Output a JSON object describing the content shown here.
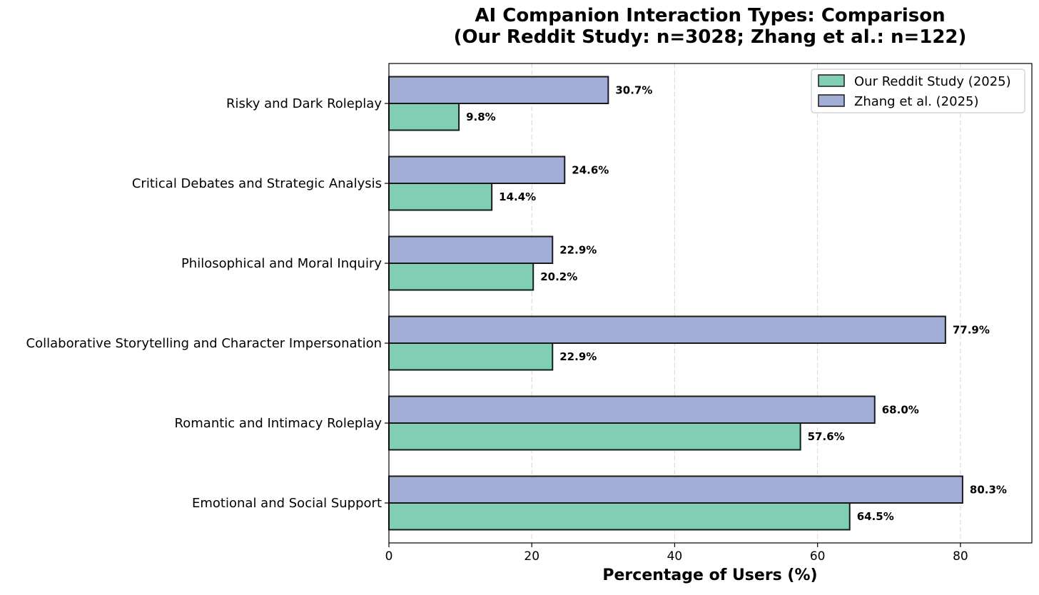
{
  "chart_data": {
    "type": "bar",
    "orientation": "horizontal",
    "title_lines": [
      "AI Companion Interaction Types: Comparison",
      "(Our Reddit Study: n=3028; Zhang et al.: n=122)"
    ],
    "xlabel": "Percentage of Users (%)",
    "ylabel": "",
    "xlim": [
      0,
      90
    ],
    "xticks": [
      0,
      20,
      40,
      60,
      80
    ],
    "grid": "vertical dashed",
    "legend_position": "top-right",
    "categories": [
      "Risky and Dark Roleplay",
      "Critical Debates and Strategic Analysis",
      "Philosophical and Moral Inquiry",
      "Collaborative Storytelling and Character Impersonation",
      "Romantic and Intimacy Roleplay",
      "Emotional and Social Support"
    ],
    "series": [
      {
        "name": "Our Reddit Study (2025)",
        "color": "#82ceb5",
        "values": [
          9.8,
          14.4,
          20.2,
          22.9,
          57.6,
          64.5
        ],
        "labels": [
          "9.8%",
          "14.4%",
          "20.2%",
          "22.9%",
          "57.6%",
          "64.5%"
        ]
      },
      {
        "name": "Zhang et al. (2025)",
        "color": "#a3aed6",
        "values": [
          30.7,
          24.6,
          22.9,
          77.9,
          68.0,
          80.3
        ],
        "labels": [
          "30.7%",
          "24.6%",
          "22.9%",
          "77.9%",
          "68.0%",
          "80.3%"
        ]
      }
    ]
  }
}
